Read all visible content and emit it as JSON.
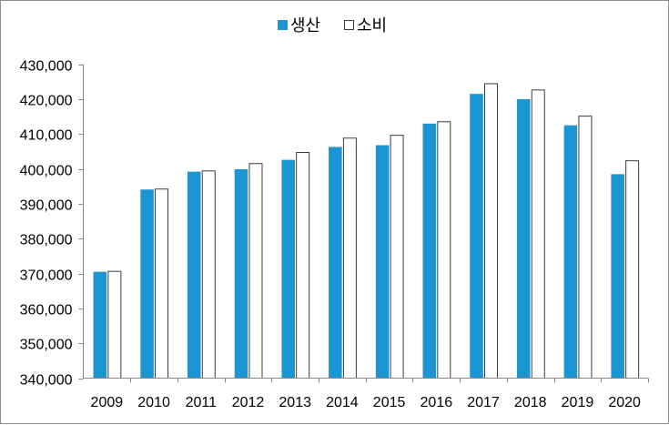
{
  "chart_data": {
    "type": "bar",
    "categories": [
      "2009",
      "2010",
      "2011",
      "2012",
      "2013",
      "2014",
      "2015",
      "2016",
      "2017",
      "2018",
      "2019",
      "2020"
    ],
    "series": [
      {
        "name": "생산",
        "color": "#1a96d4",
        "values": [
          370400,
          394000,
          399100,
          399800,
          402500,
          406200,
          406700,
          412900,
          421400,
          419900,
          412400,
          398400
        ]
      },
      {
        "name": "소비",
        "color": "#ffffff",
        "values": [
          370600,
          394200,
          399400,
          401500,
          404700,
          408800,
          409600,
          413500,
          424400,
          422600,
          415100,
          402300
        ]
      }
    ],
    "y_ticks": [
      "340,000",
      "350,000",
      "360,000",
      "370,000",
      "380,000",
      "390,000",
      "400,000",
      "410,000",
      "420,000",
      "430,000"
    ],
    "ylim": [
      340000,
      430000
    ],
    "title": "",
    "xlabel": "",
    "ylabel": "",
    "legend_position": "top-center",
    "grid": false
  }
}
